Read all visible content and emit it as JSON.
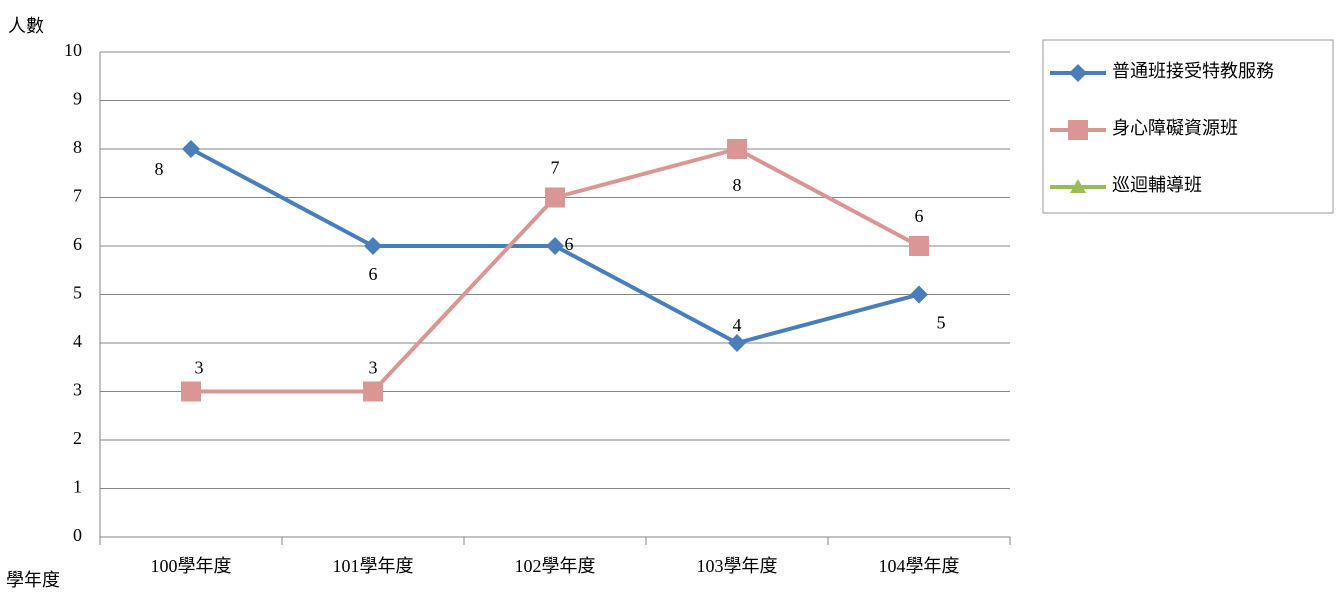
{
  "chart_data": {
    "type": "line",
    "y_label": "人數",
    "x_label": "學年度",
    "categories": [
      "100學年度",
      "101學年度",
      "102學年度",
      "103學年度",
      "104學年度"
    ],
    "series": [
      {
        "name": "普通班接受特教服務",
        "color": "#4a7ebb",
        "marker": "diamond",
        "values": [
          8,
          6,
          6,
          4,
          5
        ]
      },
      {
        "name": "身心障礙資源班",
        "color": "#d99694",
        "marker": "square",
        "values": [
          3,
          3,
          7,
          8,
          6
        ]
      },
      {
        "name": "巡迴輔導班",
        "color": "#9bbb59",
        "marker": "triangle",
        "values": [
          null,
          null,
          null,
          null,
          null
        ]
      }
    ],
    "ylim": [
      0,
      10
    ],
    "yticks": [
      0,
      1,
      2,
      3,
      4,
      5,
      6,
      7,
      8,
      9,
      10
    ],
    "grid": true,
    "legend": "right"
  }
}
